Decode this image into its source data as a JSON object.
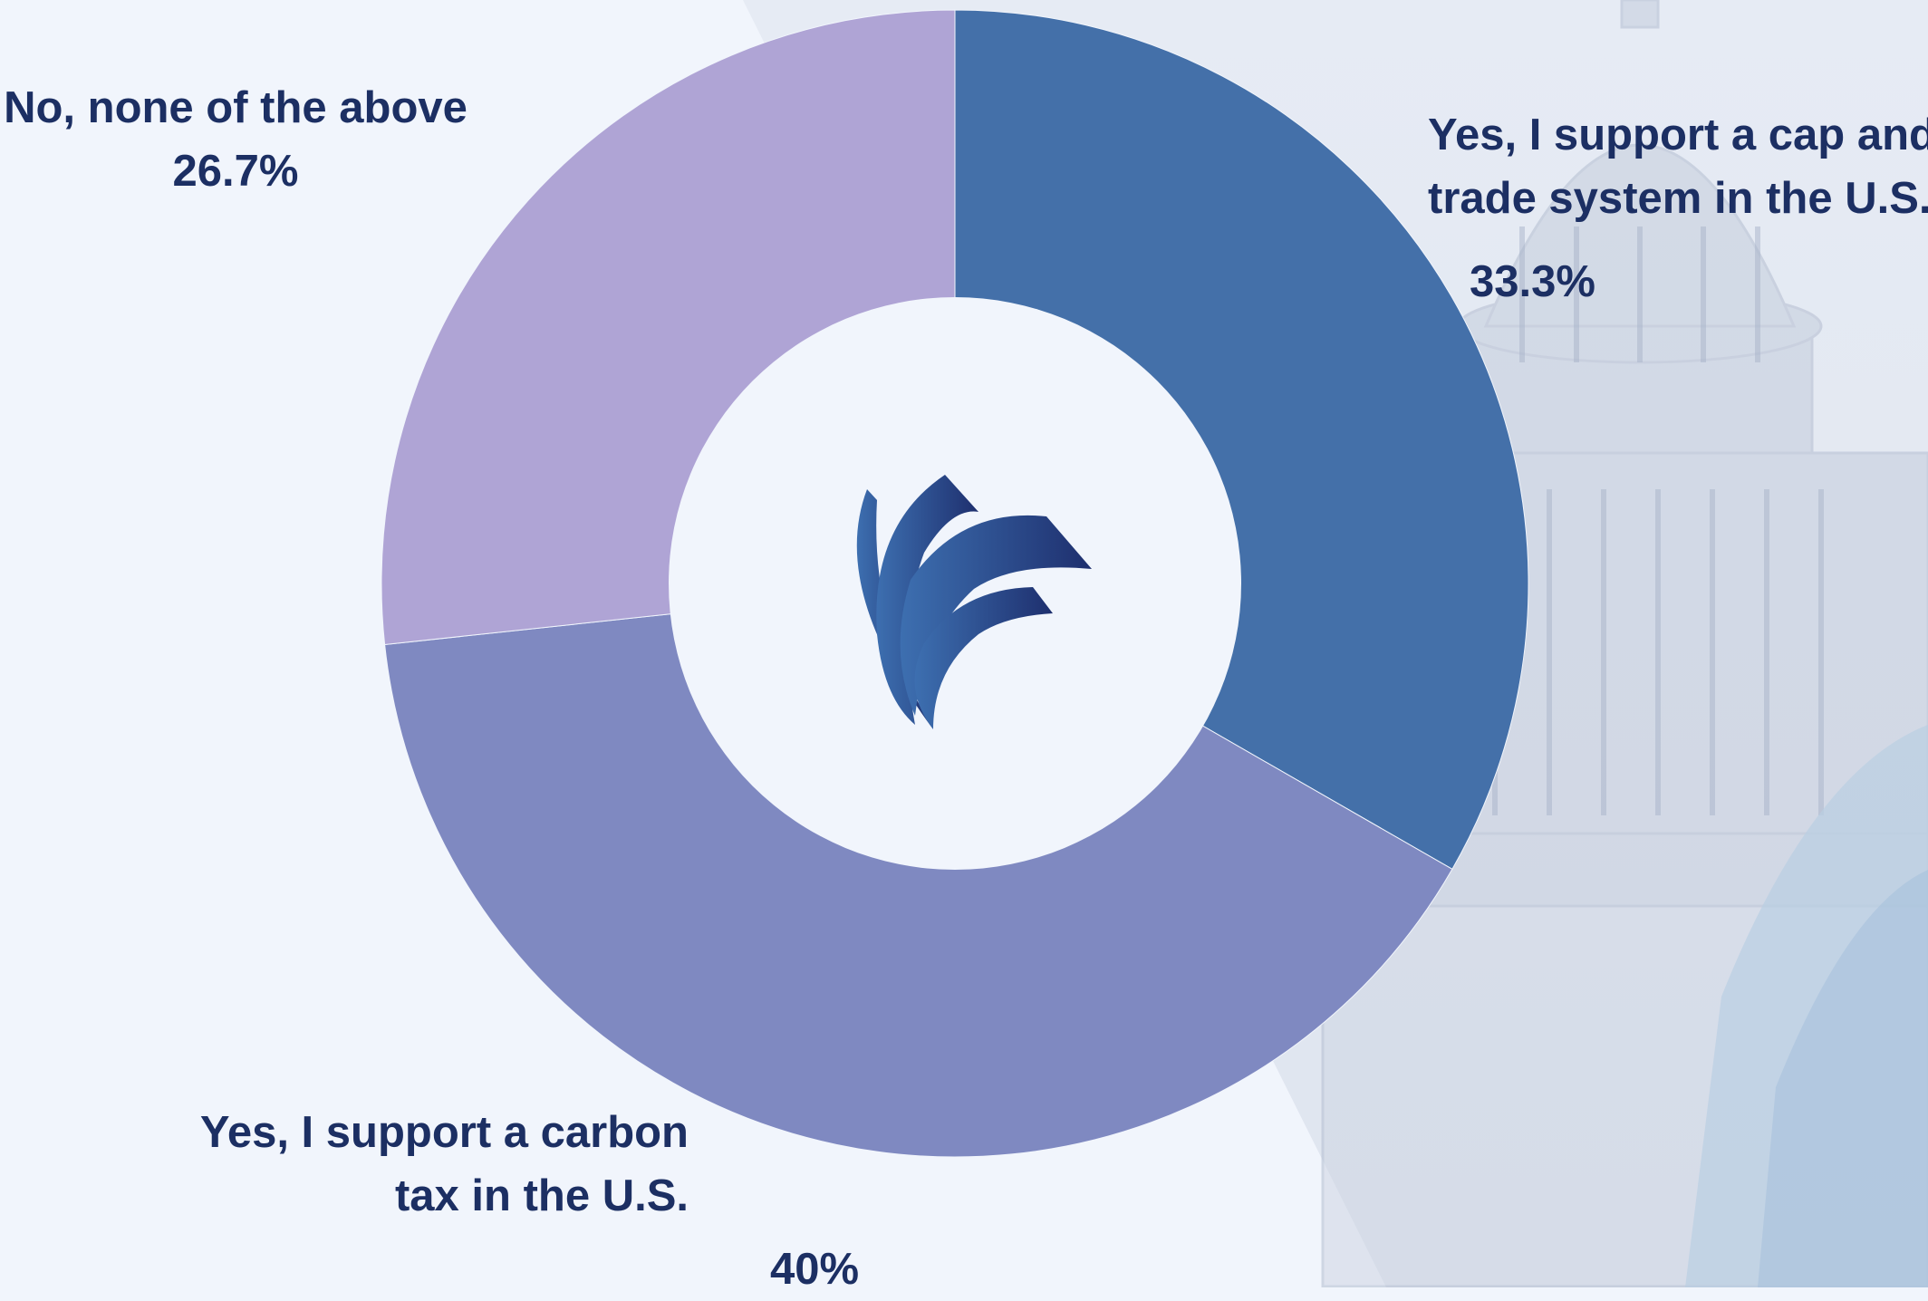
{
  "chart_data": {
    "type": "pie",
    "donut": true,
    "categories": [
      "Yes, I support a cap and trade system in the U.S.",
      "Yes, I support a carbon tax in the U.S.",
      "No, none of the above"
    ],
    "values": [
      33.3,
      40,
      26.7
    ],
    "value_labels": [
      "33.3%",
      "40%",
      "26.7%"
    ],
    "colors": [
      "#4470a9",
      "#7f89c1",
      "#afa4d5"
    ]
  },
  "labels": {
    "none_line1": "No, none of the above",
    "none_pct": "26.7%",
    "cap_line1": "Yes, I support a cap and",
    "cap_line2": "trade system in the U.S.",
    "cap_pct": "33.3%",
    "carbon_line1": "Yes, I support a carbon",
    "carbon_line2": "tax in the U.S.",
    "carbon_pct": "40%"
  },
  "logo": {
    "icon": "swoosh-logo-icon",
    "colors": [
      "#1e3f8a",
      "#3d6fb0"
    ]
  },
  "background": {
    "icon": "capitol-building-photo",
    "tint": "#c9d3e6"
  }
}
